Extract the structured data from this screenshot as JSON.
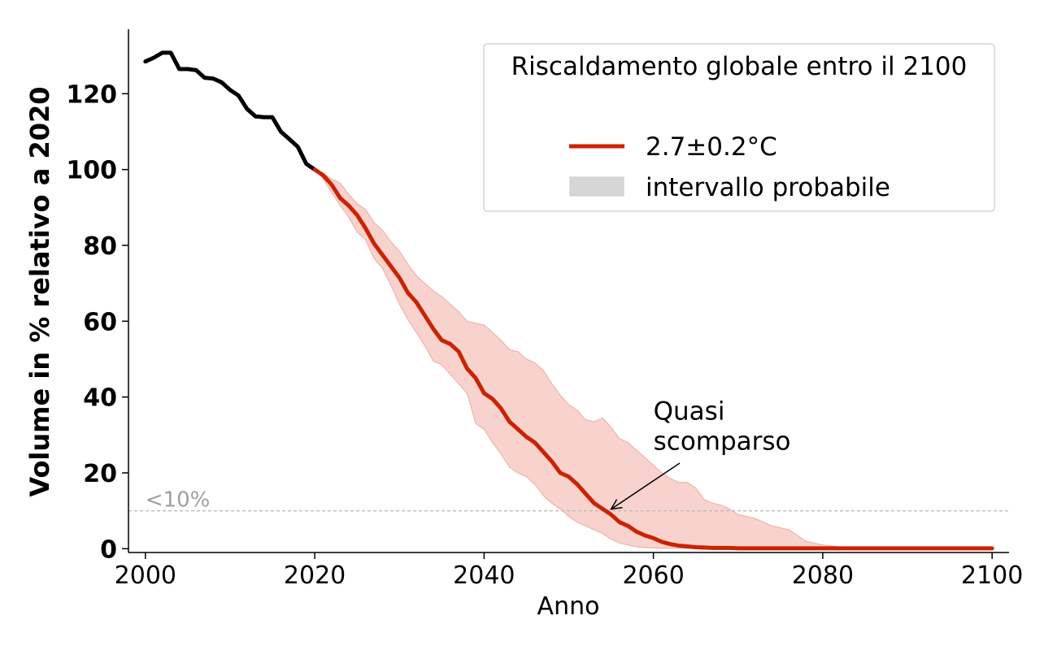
{
  "chart_data": {
    "type": "line",
    "xlabel": "Anno",
    "ylabel": "Volume in % relativo a 2020",
    "xlim": [
      1998,
      2102
    ],
    "ylim": [
      -1,
      137
    ],
    "x_ticks": [
      2000,
      2020,
      2040,
      2060,
      2080,
      2100
    ],
    "y_ticks": [
      0,
      20,
      40,
      60,
      80,
      100,
      120
    ],
    "grid": false,
    "legend": {
      "title": "Riscaldamento globale entro il 2100",
      "placement": "top-right",
      "entries": [
        {
          "label": "2.7±0.2°C",
          "kind": "line",
          "color": "#cc2200"
        },
        {
          "label": "intervallo probabile",
          "kind": "patch",
          "color": "#d6d6d6"
        }
      ]
    },
    "threshold": {
      "y": 10,
      "label": "<10%",
      "color": "#bbbbbb"
    },
    "annotation": {
      "text_lines": [
        "Quasi",
        "scomparso"
      ],
      "point": [
        2055,
        10
      ],
      "text_at": [
        2060,
        34
      ]
    },
    "series": [
      {
        "kind": "observed",
        "color": "#000000",
        "x": [
          2000,
          2001,
          2002,
          2003,
          2004,
          2005,
          2006,
          2007,
          2008,
          2009,
          2010,
          2011,
          2012,
          2013,
          2014,
          2015,
          2016,
          2017,
          2018,
          2019,
          2020
        ],
        "y": [
          128.5,
          129.5,
          130.8,
          130.8,
          126.5,
          126.5,
          126.2,
          124.2,
          124,
          123,
          121,
          119.5,
          116,
          114,
          113.8,
          113.8,
          110,
          108,
          106,
          101.5,
          100
        ]
      },
      {
        "name": "2.7±0.2°C",
        "kind": "projection",
        "color": "#cc2200",
        "x": [
          2020,
          2021,
          2022,
          2023,
          2024,
          2025,
          2026,
          2027,
          2028,
          2029,
          2030,
          2031,
          2032,
          2033,
          2034,
          2035,
          2036,
          2037,
          2038,
          2039,
          2040,
          2041,
          2042,
          2043,
          2044,
          2045,
          2046,
          2047,
          2048,
          2049,
          2050,
          2051,
          2052,
          2053,
          2054,
          2055,
          2056,
          2057,
          2058,
          2059,
          2060,
          2061,
          2062,
          2063,
          2064,
          2065,
          2066,
          2067,
          2068,
          2069,
          2070,
          2075,
          2080,
          2085,
          2090,
          2095,
          2100
        ],
        "y": [
          100,
          98.5,
          96,
          92.5,
          90.5,
          88,
          84.5,
          80.5,
          77.5,
          74.5,
          71.5,
          67.5,
          65,
          61.5,
          58,
          55,
          54,
          52,
          47.5,
          45,
          41,
          39.5,
          37,
          33.5,
          31.5,
          29.5,
          28,
          25.5,
          23,
          20,
          19,
          17,
          14.5,
          12,
          10.5,
          9,
          7,
          6,
          4.5,
          3.5,
          2.8,
          1.8,
          1.2,
          0.8,
          0.6,
          0.4,
          0.3,
          0.2,
          0.2,
          0.2,
          0.1,
          0.1,
          0.1,
          0.1,
          0.1,
          0.1,
          0.1
        ]
      }
    ],
    "band": {
      "name": "intervallo probabile",
      "color": "#f5c4be",
      "x": [
        2020,
        2021,
        2022,
        2023,
        2024,
        2025,
        2026,
        2027,
        2028,
        2029,
        2030,
        2031,
        2032,
        2033,
        2034,
        2035,
        2036,
        2037,
        2038,
        2039,
        2040,
        2041,
        2042,
        2043,
        2044,
        2045,
        2046,
        2047,
        2048,
        2049,
        2050,
        2051,
        2052,
        2053,
        2054,
        2055,
        2056,
        2057,
        2058,
        2059,
        2060,
        2061,
        2062,
        2063,
        2064,
        2065,
        2066,
        2067,
        2068,
        2069,
        2070,
        2072,
        2074,
        2076,
        2078,
        2080,
        2082,
        2085,
        2090,
        2095,
        2100
      ],
      "upper": [
        100,
        99,
        97.5,
        96.5,
        93.5,
        91,
        89.5,
        86,
        84,
        81,
        78.5,
        75,
        72,
        70,
        68,
        66.5,
        64.5,
        62.5,
        60,
        59.5,
        59,
        57,
        55,
        52.5,
        52,
        50,
        49,
        47,
        43.5,
        40.5,
        38,
        36.5,
        34,
        33.5,
        34.5,
        32,
        29,
        28,
        26,
        24,
        22,
        20,
        18.5,
        17.5,
        17.5,
        16,
        13,
        12,
        11.5,
        10.5,
        9,
        8,
        6,
        5,
        2,
        1,
        0.5,
        0.3,
        0.2,
        0.1,
        0.1
      ],
      "lower": [
        100,
        97.5,
        94,
        90.5,
        87.5,
        83.5,
        81.5,
        76.5,
        74,
        69.5,
        64.5,
        60.5,
        57,
        53.5,
        49.5,
        48.5,
        46,
        43.5,
        41,
        33,
        31.5,
        28,
        25,
        21.5,
        20,
        19,
        17,
        14,
        12,
        10.5,
        8.5,
        7,
        6,
        5,
        4,
        2.5,
        1.5,
        1,
        0.5,
        0.3,
        0.2,
        0.1,
        0.1,
        0.1,
        0.1,
        0,
        0,
        0,
        0,
        0,
        0,
        0,
        0,
        0,
        0,
        0,
        0,
        0,
        0,
        0,
        0
      ]
    }
  }
}
